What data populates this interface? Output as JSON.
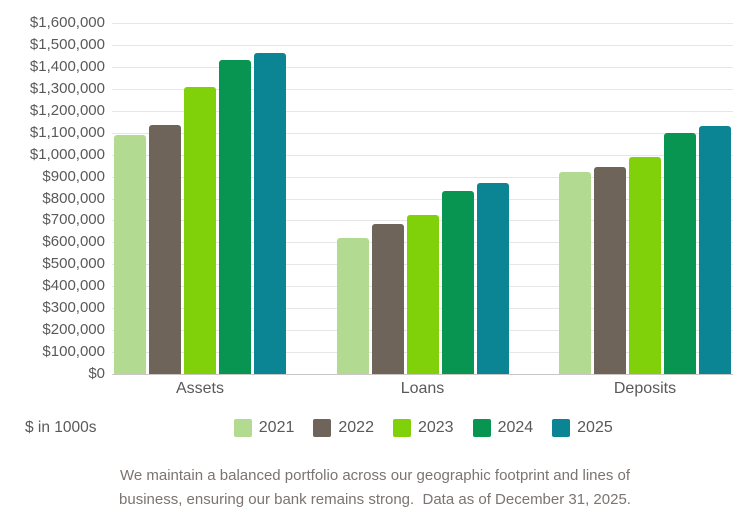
{
  "chart_data": {
    "type": "bar",
    "categories": [
      "Assets",
      "Loans",
      "Deposits"
    ],
    "series": [
      {
        "name": "2021",
        "color": "#b3da91",
        "values": [
          1090000,
          620000,
          920000
        ]
      },
      {
        "name": "2022",
        "color": "#6e6459",
        "values": [
          1135000,
          685000,
          945000
        ]
      },
      {
        "name": "2023",
        "color": "#80d00a",
        "values": [
          1310000,
          725000,
          990000
        ]
      },
      {
        "name": "2024",
        "color": "#089551",
        "values": [
          1430000,
          835000,
          1100000
        ]
      },
      {
        "name": "2025",
        "color": "#0b8593",
        "values": [
          1465000,
          870000,
          1130000
        ]
      }
    ],
    "ylim": [
      0,
      1600000
    ],
    "ytick_step": 100000,
    "ytick_prefix": "$",
    "grid": true,
    "legend_position": "bottom",
    "title": "",
    "xlabel": "",
    "ylabel": ""
  },
  "units_label": "$ in 1000s",
  "caption": {
    "line1": "We maintain a balanced portfolio across our geographic footprint and lines of",
    "line2": "business, ensuring our bank remains strong.  Data as of December 31, 2025."
  },
  "colors": {
    "axis_text": "#595959",
    "caption_text": "#7b7470",
    "gridline": "#e7e6e4",
    "baseline": "#c9c6c3",
    "background": "#ffffff"
  }
}
